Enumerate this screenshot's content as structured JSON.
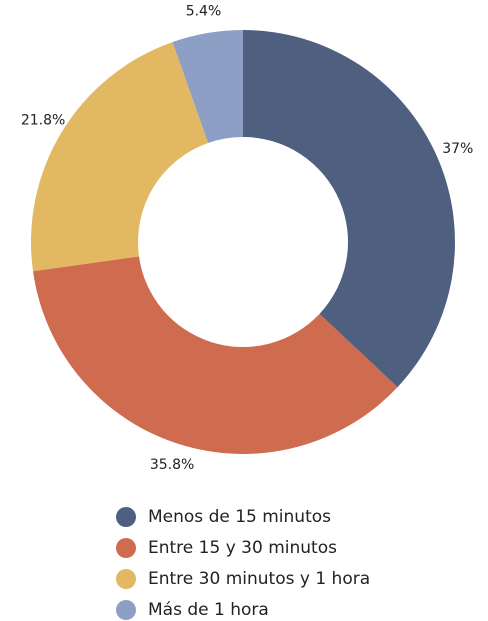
{
  "chart_data": {
    "type": "donut",
    "categories": [
      "Menos de 15 minutos",
      "Entre 15 y 30 minutos",
      "Entre 30 minutos y 1 hora",
      "Más de 1 hora"
    ],
    "values": [
      37,
      35.8,
      21.8,
      5.4
    ],
    "value_labels": [
      "37%",
      "35.8%",
      "21.8%",
      "5.4%"
    ],
    "colors": [
      "#4e5f80",
      "#cf6b4f",
      "#e2b862",
      "#8e9fc6"
    ],
    "direction": "counterclockwise",
    "legend": "bottom"
  }
}
